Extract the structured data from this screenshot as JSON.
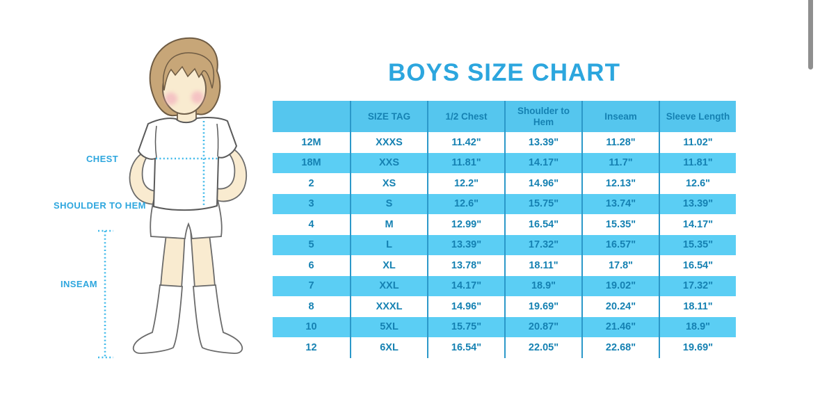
{
  "title": "BOYS SIZE CHART",
  "illustration": {
    "name": "boy wearing t-shirt, shorts and knee socks with measurement guides",
    "labels": {
      "chest": "CHEST",
      "shoulder_to_hem": "SHOULDER TO HEM",
      "inseam": "INSEAM"
    }
  },
  "colors": {
    "accent_blue": "#2CA6DE",
    "header_bg": "#55C6EE",
    "alt_row_bg": "#5BCEF4",
    "table_border": "#2B98C9",
    "cell_text": "#1581B2",
    "dotted_guide": "#3FB9EA",
    "hair": "#C7A678",
    "skin": "#F9EBD0"
  },
  "table": {
    "columns": [
      "",
      "SIZE TAG",
      "1/2 Chest",
      "Shoulder to Hem",
      "Inseam",
      "Sleeve Length"
    ],
    "rows": [
      [
        "12M",
        "XXXS",
        "11.42\"",
        "13.39\"",
        "11.28\"",
        "11.02\""
      ],
      [
        "18M",
        "XXS",
        "11.81\"",
        "14.17\"",
        "11.7\"",
        "11.81\""
      ],
      [
        "2",
        "XS",
        "12.2\"",
        "14.96\"",
        "12.13\"",
        "12.6\""
      ],
      [
        "3",
        "S",
        "12.6\"",
        "15.75\"",
        "13.74\"",
        "13.39\""
      ],
      [
        "4",
        "M",
        "12.99\"",
        "16.54\"",
        "15.35\"",
        "14.17\""
      ],
      [
        "5",
        "L",
        "13.39\"",
        "17.32\"",
        "16.57\"",
        "15.35\""
      ],
      [
        "6",
        "XL",
        "13.78\"",
        "18.11\"",
        "17.8\"",
        "16.54\""
      ],
      [
        "7",
        "XXL",
        "14.17\"",
        "18.9\"",
        "19.02\"",
        "17.32\""
      ],
      [
        "8",
        "XXXL",
        "14.96\"",
        "19.69\"",
        "20.24\"",
        "18.11\""
      ],
      [
        "10",
        "5XL",
        "15.75\"",
        "20.87\"",
        "21.46\"",
        "18.9\""
      ],
      [
        "12",
        "6XL",
        "16.54\"",
        "22.05\"",
        "22.68\"",
        "19.69\""
      ]
    ]
  }
}
